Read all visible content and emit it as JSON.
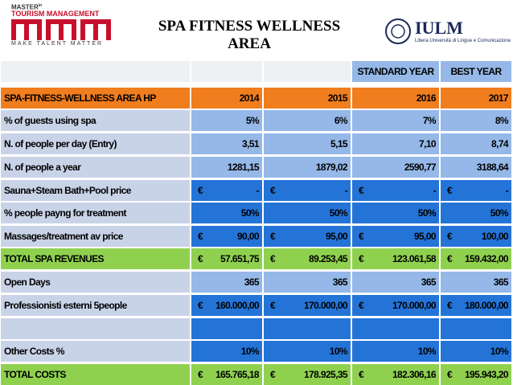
{
  "header": {
    "left_logo": {
      "line1": "MASTER",
      "line1_sup": "in",
      "line2": "TOURISM MANAGEMENT",
      "tagline": "Make Talent Matter"
    },
    "title": [
      "SPA FITNESS WELLNESS",
      "AREA"
    ],
    "right_logo": {
      "name": "IULM",
      "subtitle": "Libera Università di Lingue e Comunicazione"
    }
  },
  "table": {
    "top_row": [
      null,
      null,
      "STANDARD YEAR",
      "BEST YEAR"
    ],
    "rows": [
      {
        "label": "SPA-FITNESS-WELLNESS AREA HP",
        "cells": [
          "2014",
          "2015",
          "2016",
          "2017"
        ]
      },
      {
        "label": "% of guests using spa",
        "cells": [
          "5%",
          "6%",
          "7%",
          "8%"
        ]
      },
      {
        "label": "N. of people per day (Entry)",
        "cells": [
          "3,51",
          "5,15",
          "7,10",
          "8,74"
        ]
      },
      {
        "label": "N. of people a year",
        "cells": [
          "1281,15",
          "1879,02",
          "2590,77",
          "3188,64"
        ]
      },
      {
        "label": "Sauna+Steam Bath+Pool price",
        "cells": [
          {
            "currency": "€",
            "amount": "-"
          },
          {
            "currency": "€",
            "amount": "-"
          },
          {
            "currency": "€",
            "amount": "-"
          },
          {
            "currency": "€",
            "amount": "-"
          }
        ]
      },
      {
        "label": "% people payng for treatment",
        "cells": [
          "50%",
          "50%",
          "50%",
          "50%"
        ]
      },
      {
        "label": "Massages/treatment av price",
        "cells": [
          {
            "currency": "€",
            "amount": "90,00"
          },
          {
            "currency": "€",
            "amount": "95,00"
          },
          {
            "currency": "€",
            "amount": "95,00"
          },
          {
            "currency": "€",
            "amount": "100,00"
          }
        ]
      },
      {
        "label": "TOTAL SPA REVENUES",
        "cells": [
          {
            "currency": "€",
            "amount": "57.651,75"
          },
          {
            "currency": "€",
            "amount": "89.253,45"
          },
          {
            "currency": "€",
            "amount": "123.061,58"
          },
          {
            "currency": "€",
            "amount": "159.432,00"
          }
        ]
      },
      {
        "label": "Open Days",
        "cells": [
          "365",
          "365",
          "365",
          "365"
        ]
      },
      {
        "label": "Professionisti esterni 5people",
        "cells": [
          {
            "currency": "€",
            "amount": "160.000,00"
          },
          {
            "currency": "€",
            "amount": "170.000,00"
          },
          {
            "currency": "€",
            "amount": "170.000,00"
          },
          {
            "currency": "€",
            "amount": "180.000,00"
          }
        ]
      },
      {
        "label": null,
        "cells": [
          null,
          null,
          null,
          null
        ]
      },
      {
        "label": "Other Costs %",
        "cells": [
          "10%",
          "10%",
          "10%",
          "10%"
        ]
      },
      {
        "label": "TOTAL COSTS",
        "cells": [
          {
            "currency": "€",
            "amount": "165.765,18"
          },
          {
            "currency": "€",
            "amount": "178.925,35"
          },
          {
            "currency": "€",
            "amount": "182.306,16"
          },
          {
            "currency": "€",
            "amount": "195.943,20"
          }
        ]
      }
    ]
  }
}
